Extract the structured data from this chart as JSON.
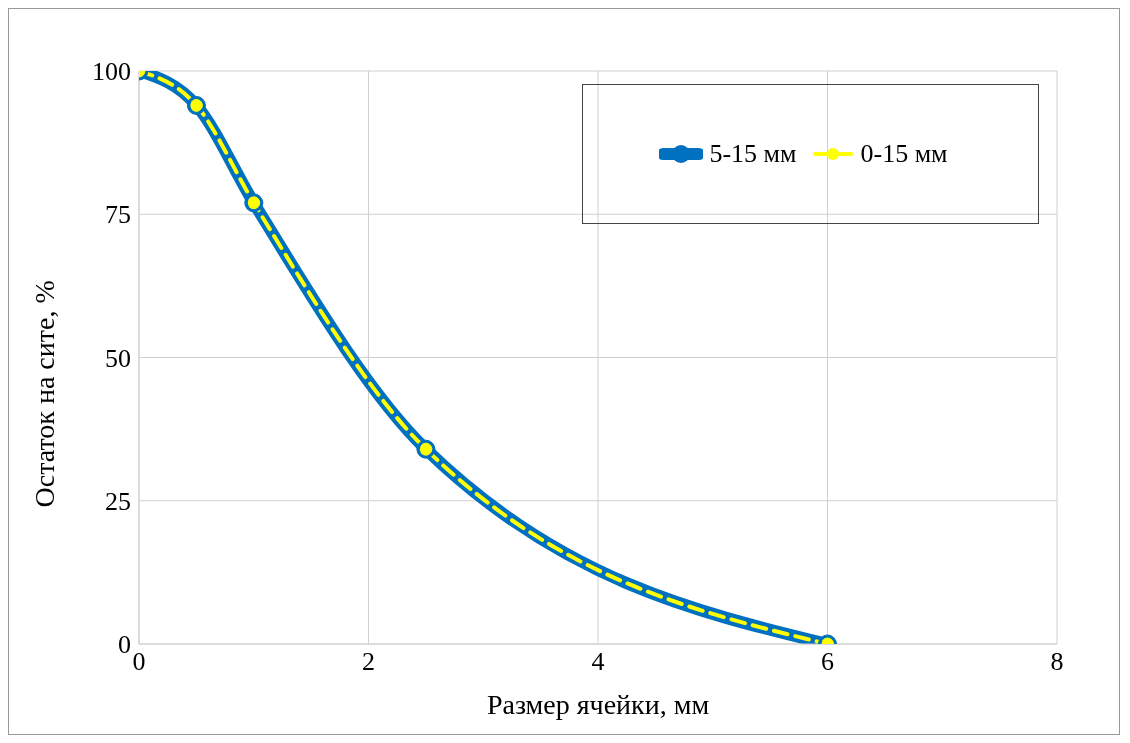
{
  "chart_data": {
    "type": "line",
    "xlabel": "Размер ячейки, мм",
    "ylabel": "Остаток на сите, %",
    "x": [
      0,
      0.5,
      1,
      2.5,
      6
    ],
    "series": [
      {
        "name": "5-15 мм",
        "color": "#0070c0",
        "values": [
          100,
          94,
          77,
          34,
          0
        ],
        "line_style": "solid"
      },
      {
        "name": "0-15 мм",
        "color": "#ffff00",
        "values": [
          100,
          94,
          77,
          34,
          0
        ],
        "line_style": "dashed"
      }
    ],
    "xlim": [
      0,
      8
    ],
    "xticks": [
      0,
      2,
      4,
      6,
      8
    ],
    "ylim": [
      0,
      100
    ],
    "yticks": [
      0,
      25,
      50,
      75,
      100
    ],
    "grid": true,
    "legend": "top right",
    "marker": "circle"
  }
}
